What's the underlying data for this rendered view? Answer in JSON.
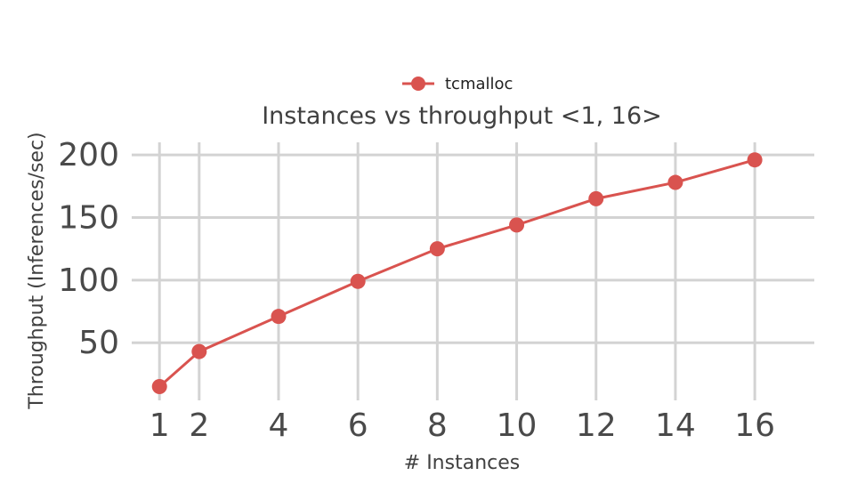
{
  "chart_data": {
    "type": "line",
    "title": "Instances vs throughput <1, 16>",
    "xlabel": "# Instances",
    "ylabel": "Throughput (Inferences/sec)",
    "x_ticks": [
      1,
      2,
      4,
      6,
      8,
      10,
      12,
      14,
      16
    ],
    "y_ticks": [
      50,
      100,
      150,
      200
    ],
    "xlim": [
      0.3,
      17.5
    ],
    "ylim": [
      4,
      210
    ],
    "grid": true,
    "legend_position": "top-center",
    "series": [
      {
        "name": "tcmalloc",
        "color": "#d9534f",
        "x": [
          1,
          2,
          4,
          6,
          8,
          10,
          12,
          14,
          16
        ],
        "y": [
          15,
          43,
          71,
          99,
          125,
          144,
          165,
          178,
          196
        ]
      }
    ]
  }
}
